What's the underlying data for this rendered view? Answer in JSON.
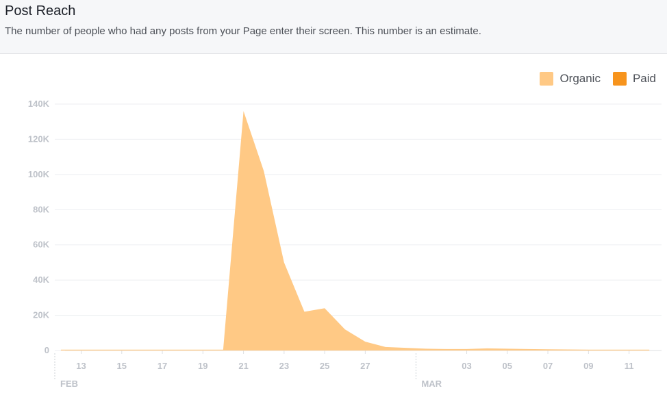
{
  "header": {
    "title": "Post Reach",
    "subtitle": "The number of people who had any posts from your Page enter their screen. This number is an estimate."
  },
  "chart_data": {
    "type": "area",
    "title": "Post Reach",
    "subtitle": "The number of people who had any posts from your Page enter their screen. This number is an estimate.",
    "xlabel": "",
    "ylabel": "",
    "ylim": [
      0,
      140000
    ],
    "yticks": [
      0,
      20000,
      40000,
      60000,
      80000,
      100000,
      120000,
      140000
    ],
    "ytick_labels": [
      "0",
      "20K",
      "40K",
      "60K",
      "80K",
      "100K",
      "120K",
      "140K"
    ],
    "grid": true,
    "legend_position": "top-right",
    "x": [
      "2024-02-12",
      "2024-02-13",
      "2024-02-14",
      "2024-02-15",
      "2024-02-16",
      "2024-02-17",
      "2024-02-18",
      "2024-02-19",
      "2024-02-20",
      "2024-02-21",
      "2024-02-22",
      "2024-02-23",
      "2024-02-24",
      "2024-02-25",
      "2024-02-26",
      "2024-02-27",
      "2024-02-28",
      "2024-02-29",
      "2024-03-01",
      "2024-03-02",
      "2024-03-03",
      "2024-03-04",
      "2024-03-05",
      "2024-03-06",
      "2024-03-07",
      "2024-03-08",
      "2024-03-09",
      "2024-03-10",
      "2024-03-11",
      "2024-03-12"
    ],
    "xtick_labels": [
      "13",
      "15",
      "17",
      "19",
      "21",
      "23",
      "25",
      "27",
      "03",
      "05",
      "07",
      "09",
      "11"
    ],
    "xtick_dates": [
      "2024-02-13",
      "2024-02-15",
      "2024-02-17",
      "2024-02-19",
      "2024-02-21",
      "2024-02-23",
      "2024-02-25",
      "2024-02-27",
      "2024-03-03",
      "2024-03-05",
      "2024-03-07",
      "2024-03-09",
      "2024-03-11"
    ],
    "month_labels": [
      {
        "label": "FEB",
        "date": "2024-02-12"
      },
      {
        "label": "MAR",
        "date": "2024-03-01"
      }
    ],
    "series": [
      {
        "name": "Organic",
        "color": "#ffc985",
        "values": [
          500,
          500,
          500,
          500,
          500,
          500,
          500,
          500,
          500,
          136000,
          102000,
          50000,
          22000,
          24000,
          12000,
          5000,
          2000,
          1500,
          1000,
          800,
          800,
          1200,
          1000,
          800,
          700,
          600,
          500,
          500,
          500,
          500
        ]
      },
      {
        "name": "Paid",
        "color": "#f7941d",
        "values": [
          0,
          0,
          0,
          0,
          0,
          0,
          0,
          0,
          0,
          0,
          0,
          0,
          0,
          0,
          0,
          0,
          0,
          0,
          0,
          0,
          0,
          0,
          0,
          0,
          0,
          0,
          0,
          0,
          0,
          0
        ]
      }
    ]
  }
}
